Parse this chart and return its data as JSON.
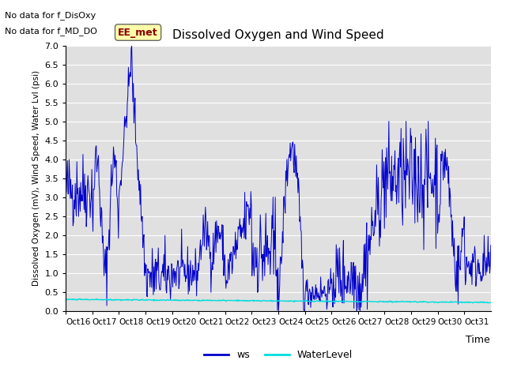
{
  "title": "Dissolved Oxygen and Wind Speed",
  "ylabel": "Dissolved Oxygen (mV), Wind Speed, Water Lvl (psi)",
  "xlabel": "Time",
  "ylim": [
    0.0,
    7.0
  ],
  "yticks": [
    0.0,
    0.5,
    1.0,
    1.5,
    2.0,
    2.5,
    3.0,
    3.5,
    4.0,
    4.5,
    5.0,
    5.5,
    6.0,
    6.5,
    7.0
  ],
  "xtick_labels": [
    "Oct 16",
    "Oct 17",
    "Oct 18",
    "Oct 19",
    "Oct 20",
    "Oct 21",
    "Oct 22",
    "Oct 23",
    "Oct 24",
    "Oct 25",
    "Oct 26",
    "Oct 27",
    "Oct 28",
    "Oct 29",
    "Oct 30",
    "Oct 31"
  ],
  "ws_color": "#0000cc",
  "wl_color": "#00dddd",
  "plot_bg": "#e0e0e0",
  "annotation_text_line1": "No data for f_DisOxy",
  "annotation_text_line2": "No data for f_MD_DO",
  "legend_label1": "ws",
  "legend_label2": "WaterLevel",
  "station_box_text": "EE_met",
  "station_box_color": "#880000",
  "station_box_bg": "#ffffaa"
}
